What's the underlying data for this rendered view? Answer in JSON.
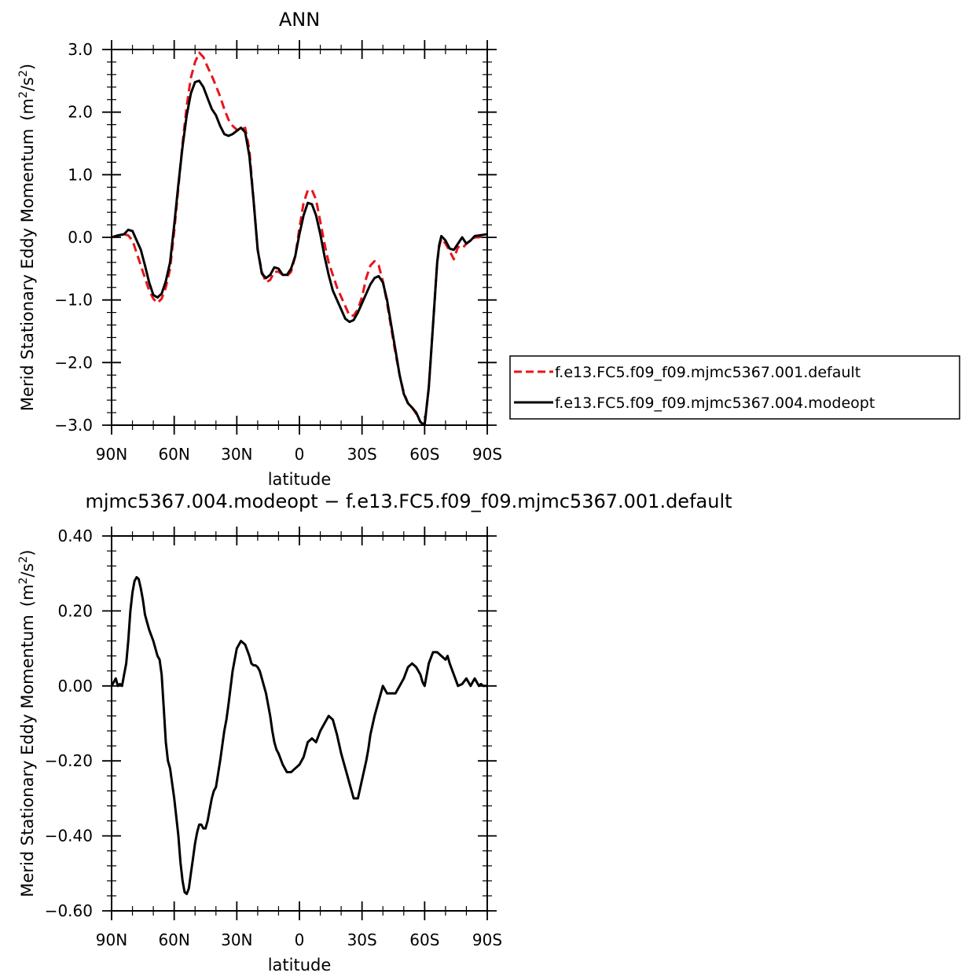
{
  "chart_data": [
    {
      "type": "line",
      "title": "ANN",
      "xlabel": "latitude",
      "ylabel": "Merid Stationary Eddy Momentum",
      "ylabel_unit_base": "(m",
      "ylabel_unit_exp": "2",
      "ylabel_unit_mid": "/s",
      "ylabel_unit_exp2": "2",
      "ylabel_unit_end": ")",
      "xlim": [
        90,
        -90
      ],
      "ylim": [
        -3.0,
        3.0
      ],
      "x_ticks": [
        {
          "value": 90,
          "label": "90N"
        },
        {
          "value": 60,
          "label": "60N"
        },
        {
          "value": 30,
          "label": "30N"
        },
        {
          "value": 0,
          "label": "0"
        },
        {
          "value": -30,
          "label": "30S"
        },
        {
          "value": -60,
          "label": "60S"
        },
        {
          "value": -90,
          "label": "90S"
        }
      ],
      "y_ticks": [
        {
          "value": 3.0,
          "label": "3.0"
        },
        {
          "value": 2.0,
          "label": "2.0"
        },
        {
          "value": 1.0,
          "label": "1.0"
        },
        {
          "value": 0.0,
          "label": "0.0"
        },
        {
          "value": -1.0,
          "label": "−1.0"
        },
        {
          "value": -2.0,
          "label": "−2.0"
        },
        {
          "value": -3.0,
          "label": "−3.0"
        }
      ],
      "legend": "right",
      "series": [
        {
          "name": "f.e13.FC5.f09_f09.mjmc5367.001.default",
          "color": "#e8141b",
          "dash": "dashed",
          "x": [
            90,
            87,
            84,
            82,
            80,
            78,
            76,
            74,
            72,
            70,
            68,
            66,
            64,
            62,
            60,
            58,
            56,
            54,
            52,
            50,
            48,
            46,
            44,
            42,
            40,
            38,
            36,
            34,
            32,
            30,
            28,
            26,
            24,
            22,
            20,
            18,
            16,
            14,
            12,
            10,
            8,
            6,
            4,
            2,
            0,
            -2,
            -4,
            -6,
            -8,
            -10,
            -12,
            -14,
            -16,
            -18,
            -20,
            -22,
            -24,
            -26,
            -28,
            -30,
            -32,
            -34,
            -36,
            -38,
            -40,
            -42,
            -44,
            -46,
            -48,
            -50,
            -52,
            -54,
            -56,
            -58,
            -60,
            -62,
            -64,
            -66,
            -67,
            -68,
            -70,
            -72,
            -74,
            -76,
            -78,
            -80,
            -82,
            -84,
            -86,
            -88,
            -90
          ],
          "y": [
            0.0,
            0.03,
            0.05,
            0.03,
            -0.05,
            -0.25,
            -0.45,
            -0.65,
            -0.85,
            -0.98,
            -1.05,
            -0.98,
            -0.8,
            -0.5,
            0.1,
            0.8,
            1.5,
            2.1,
            2.55,
            2.8,
            2.95,
            2.88,
            2.72,
            2.58,
            2.42,
            2.25,
            2.05,
            1.88,
            1.78,
            1.72,
            1.72,
            1.75,
            1.4,
            0.6,
            -0.2,
            -0.55,
            -0.72,
            -0.68,
            -0.55,
            -0.55,
            -0.6,
            -0.62,
            -0.55,
            -0.3,
            0.15,
            0.55,
            0.75,
            0.76,
            0.6,
            0.25,
            -0.1,
            -0.4,
            -0.6,
            -0.8,
            -0.95,
            -1.1,
            -1.25,
            -1.25,
            -1.15,
            -0.95,
            -0.65,
            -0.45,
            -0.38,
            -0.45,
            -0.7,
            -1.05,
            -1.45,
            -1.85,
            -2.2,
            -2.48,
            -2.65,
            -2.72,
            -2.82,
            -2.95,
            -3.0,
            -2.4,
            -1.4,
            -0.4,
            -0.15,
            -0.02,
            -0.1,
            -0.22,
            -0.35,
            -0.15,
            -0.18,
            -0.1,
            -0.05,
            0.0,
            0.0,
            0.02,
            0.05
          ]
        },
        {
          "name": "f.e13.FC5.f09_f09.mjmc5367.004.modeopt",
          "color": "#000000",
          "dash": "solid",
          "x": [
            90,
            87,
            84,
            82,
            80,
            78,
            76,
            74,
            72,
            70,
            68,
            66,
            64,
            62,
            60,
            58,
            56,
            54,
            52,
            50,
            48,
            46,
            44,
            42,
            40,
            38,
            36,
            34,
            32,
            30,
            28,
            26,
            24,
            22,
            20,
            18,
            16,
            14,
            12,
            10,
            8,
            6,
            4,
            2,
            0,
            -2,
            -4,
            -6,
            -8,
            -10,
            -12,
            -14,
            -16,
            -18,
            -20,
            -22,
            -24,
            -26,
            -28,
            -30,
            -32,
            -34,
            -36,
            -38,
            -40,
            -42,
            -44,
            -46,
            -48,
            -50,
            -52,
            -54,
            -56,
            -58,
            -60,
            -62,
            -64,
            -66,
            -67,
            -68,
            -70,
            -72,
            -74,
            -76,
            -78,
            -80,
            -82,
            -84,
            -86,
            -88,
            -90
          ],
          "y": [
            0.0,
            0.03,
            0.05,
            0.12,
            0.1,
            -0.05,
            -0.2,
            -0.45,
            -0.72,
            -0.92,
            -0.96,
            -0.9,
            -0.7,
            -0.4,
            0.2,
            0.85,
            1.45,
            1.95,
            2.3,
            2.48,
            2.5,
            2.4,
            2.22,
            2.05,
            1.95,
            1.78,
            1.65,
            1.62,
            1.65,
            1.7,
            1.75,
            1.68,
            1.3,
            0.6,
            -0.2,
            -0.58,
            -0.65,
            -0.6,
            -0.48,
            -0.5,
            -0.6,
            -0.6,
            -0.5,
            -0.3,
            0.05,
            0.35,
            0.55,
            0.53,
            0.35,
            0.05,
            -0.3,
            -0.6,
            -0.85,
            -1.0,
            -1.15,
            -1.3,
            -1.35,
            -1.32,
            -1.2,
            -1.05,
            -0.9,
            -0.75,
            -0.65,
            -0.62,
            -0.72,
            -1.0,
            -1.4,
            -1.8,
            -2.2,
            -2.5,
            -2.65,
            -2.72,
            -2.8,
            -2.95,
            -3.0,
            -2.4,
            -1.4,
            -0.4,
            -0.12,
            0.02,
            -0.05,
            -0.18,
            -0.2,
            -0.1,
            0.0,
            -0.1,
            -0.05,
            0.02,
            0.03,
            0.04,
            0.05
          ]
        }
      ]
    },
    {
      "type": "line",
      "title": "mjmc5367.004.modeopt − f.e13.FC5.f09_f09.mjmc5367.001.default",
      "xlabel": "latitude",
      "ylabel": "Merid Stationary Eddy Momentum",
      "ylabel_unit_base": "(m",
      "ylabel_unit_exp": "2",
      "ylabel_unit_mid": "/s",
      "ylabel_unit_exp2": "2",
      "ylabel_unit_end": ")",
      "xlim": [
        90,
        -90
      ],
      "ylim": [
        -0.6,
        0.4
      ],
      "x_ticks": [
        {
          "value": 90,
          "label": "90N"
        },
        {
          "value": 60,
          "label": "60N"
        },
        {
          "value": 30,
          "label": "30N"
        },
        {
          "value": 0,
          "label": "0"
        },
        {
          "value": -30,
          "label": "30S"
        },
        {
          "value": -60,
          "label": "60S"
        },
        {
          "value": -90,
          "label": "90S"
        }
      ],
      "y_ticks": [
        {
          "value": 0.4,
          "label": "0.40"
        },
        {
          "value": 0.2,
          "label": "0.20"
        },
        {
          "value": 0.0,
          "label": "0.00"
        },
        {
          "value": -0.2,
          "label": "−0.20"
        },
        {
          "value": -0.4,
          "label": "−0.40"
        },
        {
          "value": -0.6,
          "label": "−0.60"
        }
      ],
      "series": [
        {
          "color": "#000000",
          "dash": "solid",
          "x": [
            90,
            89,
            88,
            87,
            86,
            85,
            84,
            83,
            82,
            81,
            80,
            79,
            78,
            77,
            76,
            75,
            74,
            73,
            72,
            70,
            68,
            67,
            66,
            65,
            64,
            63,
            62,
            60,
            58,
            57,
            56,
            55,
            54,
            53,
            52,
            51,
            50,
            49,
            48,
            47,
            46,
            45,
            44,
            43,
            42,
            41,
            40,
            38,
            36,
            35,
            34,
            32,
            30,
            28,
            26,
            24,
            23,
            22,
            21,
            20,
            19,
            18,
            16,
            14,
            13,
            12,
            11,
            10,
            8,
            6,
            4,
            2,
            0,
            -2,
            -4,
            -6,
            -8,
            -10,
            -12,
            -14,
            -16,
            -18,
            -20,
            -22,
            -23,
            -24,
            -25,
            -26,
            -28,
            -30,
            -32,
            -33,
            -34,
            -36,
            -38,
            -40,
            -42,
            -44,
            -46,
            -47,
            -48,
            -50,
            -52,
            -54,
            -56,
            -58,
            -59,
            -60,
            -61,
            -62,
            -64,
            -66,
            -68,
            -70,
            -71,
            -72,
            -74,
            -76,
            -78,
            -80,
            -82,
            -83,
            -84,
            -85,
            -86,
            -87,
            -88,
            -89,
            -90
          ],
          "y": [
            0.0,
            0.01,
            0.02,
            0.0,
            0.005,
            0.0,
            0.03,
            0.06,
            0.12,
            0.2,
            0.25,
            0.28,
            0.29,
            0.285,
            0.26,
            0.23,
            0.19,
            0.17,
            0.15,
            0.12,
            0.08,
            0.07,
            0.03,
            -0.06,
            -0.15,
            -0.2,
            -0.22,
            -0.3,
            -0.4,
            -0.47,
            -0.52,
            -0.55,
            -0.555,
            -0.54,
            -0.5,
            -0.46,
            -0.42,
            -0.39,
            -0.37,
            -0.37,
            -0.38,
            -0.38,
            -0.36,
            -0.33,
            -0.3,
            -0.28,
            -0.27,
            -0.2,
            -0.12,
            -0.09,
            -0.05,
            0.04,
            0.1,
            0.12,
            0.11,
            0.08,
            0.06,
            0.055,
            0.055,
            0.05,
            0.04,
            0.02,
            -0.02,
            -0.08,
            -0.12,
            -0.15,
            -0.17,
            -0.18,
            -0.21,
            -0.23,
            -0.23,
            -0.22,
            -0.21,
            -0.19,
            -0.15,
            -0.14,
            -0.15,
            -0.12,
            -0.1,
            -0.08,
            -0.09,
            -0.13,
            -0.18,
            -0.22,
            -0.24,
            -0.26,
            -0.28,
            -0.3,
            -0.3,
            -0.25,
            -0.2,
            -0.17,
            -0.13,
            -0.08,
            -0.04,
            0.0,
            -0.02,
            -0.02,
            -0.02,
            -0.01,
            0.0,
            0.02,
            0.05,
            0.06,
            0.05,
            0.03,
            0.01,
            0.0,
            0.03,
            0.06,
            0.09,
            0.09,
            0.08,
            0.07,
            0.08,
            0.06,
            0.03,
            0.0,
            0.005,
            0.02,
            0.0,
            0.01,
            0.02,
            0.01,
            0.0,
            0.005,
            0.0,
            0.0,
            0.0
          ]
        }
      ]
    }
  ]
}
